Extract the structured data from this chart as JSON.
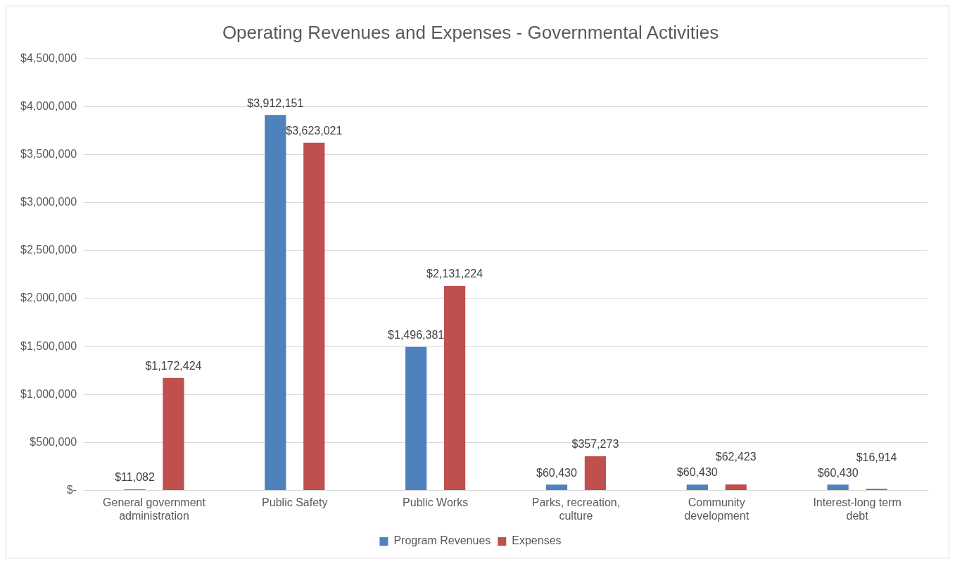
{
  "chart_data": {
    "type": "bar",
    "title": "Operating Revenues and Expenses - Governmental Activities",
    "categories": [
      "General government administration",
      "Public Safety",
      "Public Works",
      "Parks, recreation, culture",
      "Community development",
      "Interest-long term debt"
    ],
    "series": [
      {
        "name": "Program Revenues",
        "color": "#4f81bd",
        "values": [
          11082,
          3912151,
          1496381,
          60430,
          60430,
          60430
        ],
        "value_labels": [
          "$11,082",
          "$3,912,151",
          "$1,496,381",
          "$60,430",
          "$60,430",
          "$60,430"
        ]
      },
      {
        "name": "Expenses",
        "color": "#c0504d",
        "values": [
          1172424,
          3623021,
          2131224,
          357273,
          62423,
          16914
        ],
        "value_labels": [
          "$1,172,424",
          "$3,623,021",
          "$2,131,224",
          "$357,273",
          "$62,423",
          "$16,914"
        ]
      }
    ],
    "ylim": [
      0,
      4500000
    ],
    "yticks": [
      {
        "value": 0,
        "label": "$-"
      },
      {
        "value": 500000,
        "label": "$500,000"
      },
      {
        "value": 1000000,
        "label": "$1,000,000"
      },
      {
        "value": 1500000,
        "label": "$1,500,000"
      },
      {
        "value": 2000000,
        "label": "$2,000,000"
      },
      {
        "value": 2500000,
        "label": "$2,500,000"
      },
      {
        "value": 3000000,
        "label": "$3,000,000"
      },
      {
        "value": 3500000,
        "label": "$3,500,000"
      },
      {
        "value": 4000000,
        "label": "$4,000,000"
      },
      {
        "value": 4500000,
        "label": "$4,500,000"
      }
    ],
    "grid": "y",
    "legend": "bottom"
  }
}
